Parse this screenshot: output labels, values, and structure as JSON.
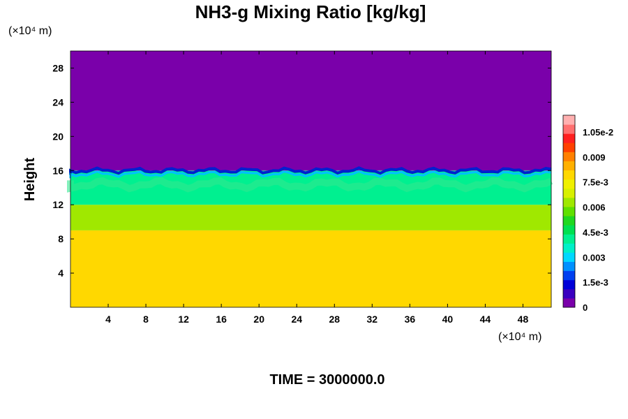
{
  "chart_data": {
    "type": "heatmap",
    "title": "NH3-g Mixing Ratio [kg/kg]",
    "ylabel": "Height",
    "xlabel": "",
    "x_unit": "(×10⁴ m)",
    "y_unit": "(×10⁴ m)",
    "x_ticks": [
      "4",
      "8",
      "12",
      "16",
      "20",
      "24",
      "28",
      "32",
      "36",
      "40",
      "44",
      "48"
    ],
    "y_ticks": [
      "4",
      "8",
      "12",
      "16",
      "20",
      "24",
      "28"
    ],
    "xlim": [
      0,
      51
    ],
    "ylim": [
      0,
      30
    ],
    "grid": false,
    "colorbar": {
      "placement": "right",
      "range": [
        0,
        0.0115
      ],
      "tick_labels": [
        "0",
        "1.5e-3",
        "0.003",
        "4.5e-3",
        "0.006",
        "7.5e-3",
        "0.009",
        "1.05e-2"
      ],
      "tick_values": [
        0,
        0.0015,
        0.003,
        0.0045,
        0.006,
        0.0075,
        0.009,
        0.0105
      ],
      "colors": [
        "#7a00aa",
        "#3a00c0",
        "#0000d8",
        "#0040f0",
        "#0090ff",
        "#00d8ff",
        "#00f0c8",
        "#00f090",
        "#00e050",
        "#20d820",
        "#60e000",
        "#a0e800",
        "#d8f000",
        "#f0f000",
        "#ffd800",
        "#ffb000",
        "#ff8000",
        "#ff4000",
        "#ff2020",
        "#ff7070",
        "#ffb0b0"
      ]
    },
    "layers": [
      {
        "name": "",
        "height_range": [
          0,
          9
        ],
        "value": 0.0078
      },
      {
        "name": "",
        "height_range": [
          9,
          12
        ],
        "value": 0.0065
      },
      {
        "name": "",
        "height_range": [
          12,
          16
        ],
        "value": 0.0042
      },
      {
        "name": "",
        "height_range": [
          16,
          30
        ],
        "value": 0.0
      }
    ],
    "annotation": "TIME = 3000000.0"
  }
}
